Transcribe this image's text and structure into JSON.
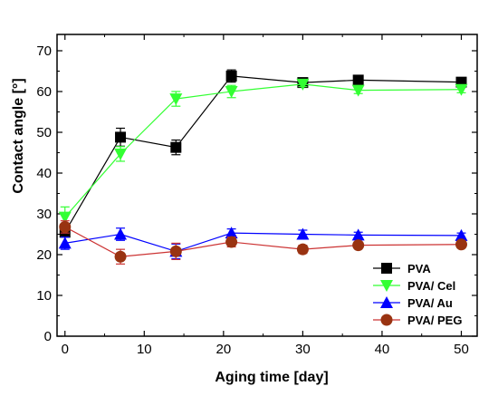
{
  "chart_data": {
    "type": "line",
    "xlabel": "Aging time [day]",
    "ylabel": "Contact angle [°]",
    "xlim": [
      -1,
      52
    ],
    "ylim": [
      0,
      74
    ],
    "xticks": [
      0,
      10,
      20,
      30,
      40,
      50
    ],
    "yticks": [
      0,
      10,
      20,
      30,
      40,
      50,
      60,
      70
    ],
    "grid": false,
    "legend_position": "bottom-right",
    "series": [
      {
        "name": "PVA",
        "marker": "square",
        "color": "#000000",
        "line_color": "#000000",
        "x": [
          0,
          7,
          14,
          21,
          30,
          37,
          50
        ],
        "y": [
          25.5,
          48.8,
          46.3,
          63.8,
          62.2,
          62.8,
          62.3
        ],
        "err": [
          1.2,
          2.2,
          1.8,
          1.5,
          0.8,
          1.0,
          0.9
        ]
      },
      {
        "name": "PVA/ Cel",
        "marker": "triangle-down",
        "color": "#33ff33",
        "line_color": "#33ff33",
        "x": [
          0,
          7,
          14,
          21,
          30,
          37,
          50
        ],
        "y": [
          29.2,
          44.7,
          58.2,
          60.0,
          61.8,
          60.3,
          60.5
        ],
        "err": [
          2.5,
          1.8,
          1.8,
          1.5,
          0.6,
          0.8,
          0.8
        ]
      },
      {
        "name": "PVA/ Au",
        "marker": "triangle-up",
        "color": "#0000ff",
        "line_color": "#0000ff",
        "x": [
          0,
          7,
          14,
          21,
          30,
          37,
          50
        ],
        "y": [
          22.8,
          25.0,
          20.8,
          25.3,
          25.0,
          24.8,
          24.7
        ],
        "err": [
          1.5,
          1.5,
          1.8,
          1.0,
          1.0,
          0.7,
          0.6
        ]
      },
      {
        "name": "PVA/ PEG",
        "marker": "circle",
        "color": "#993311",
        "line_color": "#cc3333",
        "x": [
          0,
          7,
          14,
          21,
          30,
          37,
          50
        ],
        "y": [
          26.8,
          19.5,
          20.8,
          23.1,
          21.3,
          22.3,
          22.5
        ],
        "err": [
          1.5,
          1.8,
          2.0,
          1.2,
          1.0,
          0.6,
          0.6
        ]
      }
    ]
  }
}
